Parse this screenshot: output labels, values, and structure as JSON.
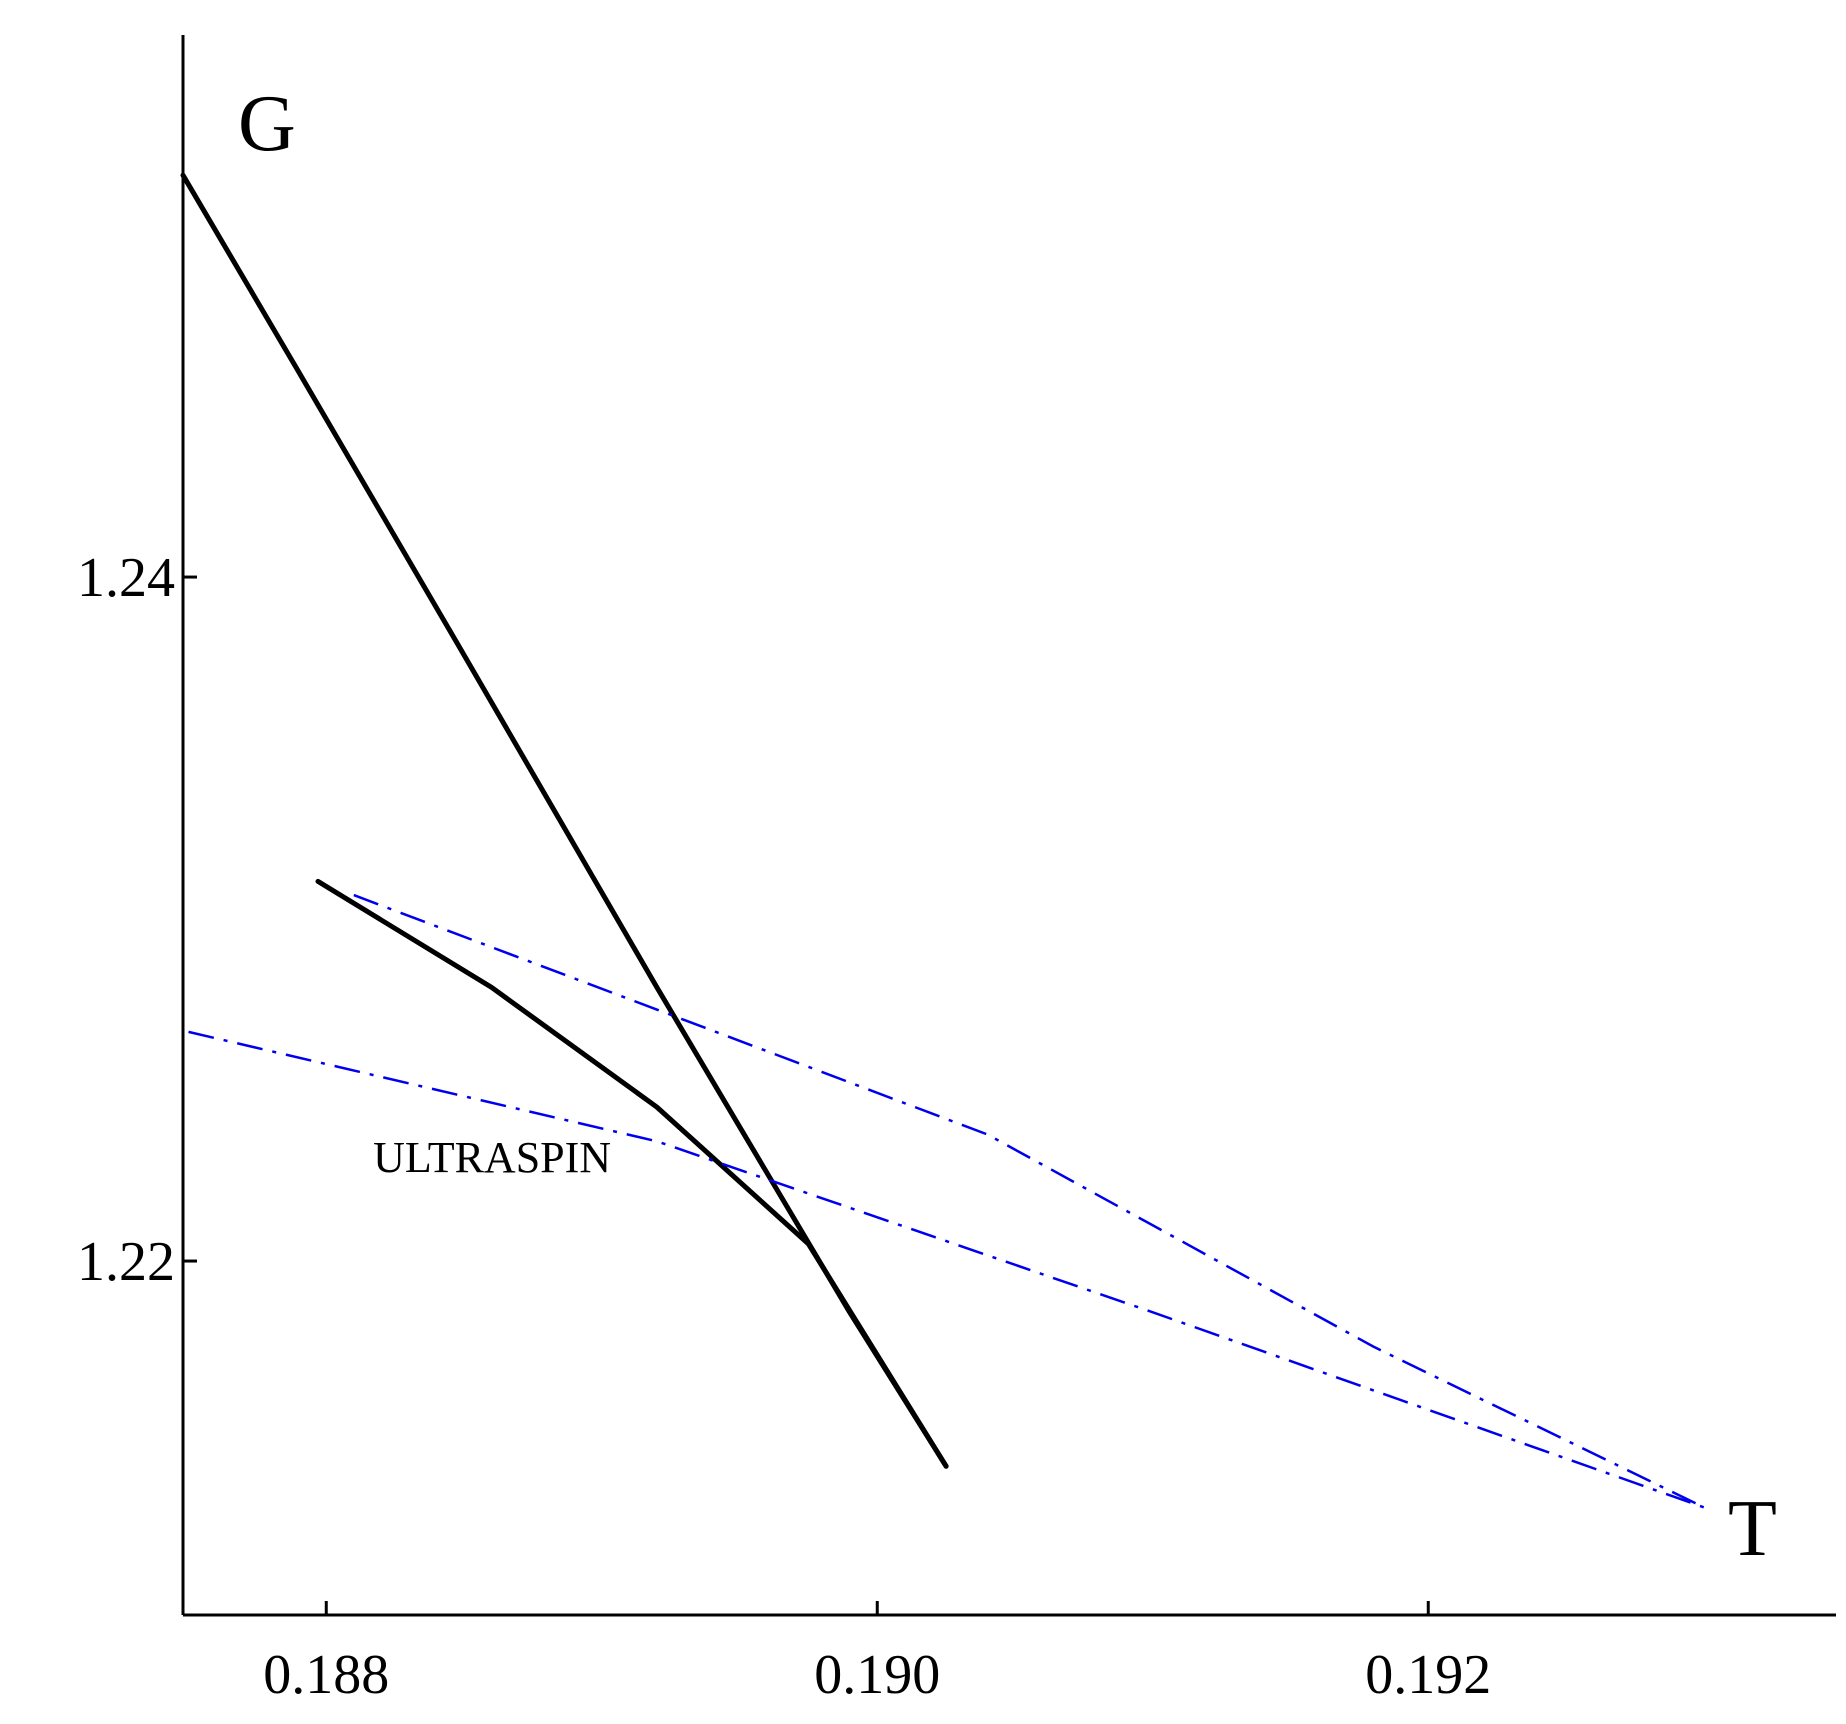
{
  "chart_data": {
    "type": "line",
    "title": "",
    "xlabel": "T",
    "ylabel": "G",
    "xlim": [
      0.18748,
      0.19348
    ],
    "ylim": [
      1.20965,
      1.25585
    ],
    "grid": false,
    "legend": "none",
    "x_ticks": [
      {
        "value": 0.188,
        "label": "0.188"
      },
      {
        "value": 0.19,
        "label": "0.190"
      },
      {
        "value": 0.192,
        "label": "0.192"
      }
    ],
    "y_ticks": [
      {
        "value": 1.22,
        "label": "1.22"
      },
      {
        "value": 1.24,
        "label": "1.24"
      }
    ],
    "annotations": [
      {
        "text": "ULTRASPIN",
        "x": 0.18817,
        "y": 1.2226
      }
    ],
    "series": [
      {
        "style": "solid",
        "color": "#000000",
        "points": [
          [
            0.18748,
            1.25175
          ],
          [
            0.1879,
            1.246
          ],
          [
            0.18848,
            1.238
          ],
          [
            0.1892,
            1.228
          ],
          [
            0.1899,
            1.2185
          ],
          [
            0.19025,
            1.214
          ]
        ]
      },
      {
        "style": "solid",
        "color": "#000000",
        "points": [
          [
            0.18797,
            1.2311
          ],
          [
            0.1886,
            1.228
          ],
          [
            0.1892,
            1.2245
          ],
          [
            0.18975,
            1.2205
          ],
          [
            0.19025,
            1.214
          ]
        ]
      },
      {
        "style": "dashdot",
        "color": "#0000ee",
        "points": [
          [
            0.1875,
            1.2267
          ],
          [
            0.1892,
            1.2235
          ],
          [
            0.191,
            1.2185
          ],
          [
            0.193,
            1.2128
          ]
        ]
      },
      {
        "style": "dashdot",
        "color": "#0000ee",
        "points": [
          [
            0.1881,
            1.2307
          ],
          [
            0.1904,
            1.2237
          ],
          [
            0.1918,
            1.2175
          ],
          [
            0.193,
            1.2128
          ]
        ]
      }
    ]
  }
}
